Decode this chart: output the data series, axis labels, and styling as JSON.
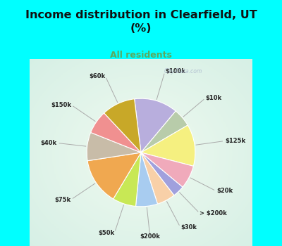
{
  "title": "Income distribution in Clearfield, UT\n(%)",
  "subtitle": "All residents",
  "title_color": "#111111",
  "subtitle_color": "#5aaa60",
  "bg_top": "#00ffff",
  "labels": [
    "$100k",
    "$10k",
    "$125k",
    "$20k",
    "> $200k",
    "$30k",
    "$200k",
    "$50k",
    "$75k",
    "$40k",
    "$150k",
    "$60k"
  ],
  "values": [
    13.0,
    5.5,
    12.5,
    7.0,
    3.5,
    5.5,
    6.5,
    7.0,
    14.0,
    8.5,
    7.0,
    10.0
  ],
  "colors": [
    "#b8aedd",
    "#b8ccaa",
    "#f5f080",
    "#f0aabb",
    "#a0a0dd",
    "#f8d0a8",
    "#a8ccf0",
    "#c8e855",
    "#f0a850",
    "#c8bca8",
    "#f09090",
    "#c8a828"
  ],
  "label_color": "#222222",
  "watermark": "City-Data.com",
  "chart_bg": "#e0f5ea"
}
